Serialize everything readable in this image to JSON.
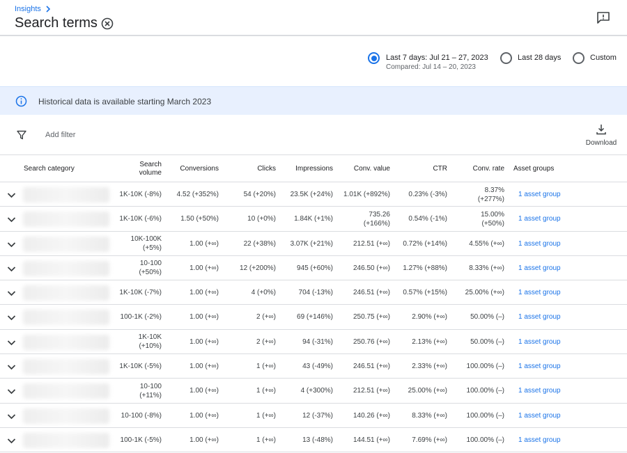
{
  "header": {
    "breadcrumb": "Insights",
    "title": "Search terms",
    "icons": {
      "chevron": "chevron-right-icon",
      "close": "close-circle-icon",
      "feedback": "feedback-icon"
    }
  },
  "date_range": {
    "options": [
      {
        "label": "Last 7 days: Jul 21 – 27, 2023",
        "sub": "Compared: Jul 14 – 20, 2023",
        "selected": true
      },
      {
        "label": "Last 28 days",
        "selected": false
      },
      {
        "label": "Custom",
        "selected": false
      }
    ]
  },
  "banner": {
    "text": "Historical data is available starting March 2023",
    "icon": "info-icon"
  },
  "filter": {
    "placeholder": "Add filter",
    "icon": "filter-icon"
  },
  "download": {
    "label": "Download",
    "icon": "download-icon"
  },
  "table": {
    "columns": {
      "category": "Search category",
      "volume_1": "Search",
      "volume_2": "volume",
      "conversions": "Conversions",
      "clicks": "Clicks",
      "impressions": "Impressions",
      "conv_value": "Conv. value",
      "ctr": "CTR",
      "conv_rate": "Conv. rate",
      "asset_groups": "Asset groups"
    },
    "rows": [
      {
        "volume": [
          "1K-10K (-8%)"
        ],
        "conversions": "4.52 (+352%)",
        "clicks": "54 (+20%)",
        "impressions": "23.5K (+24%)",
        "conv_value": [
          "1.01K (+892%)"
        ],
        "ctr": "0.23% (-3%)",
        "conv_rate": [
          "8.37%",
          "(+277%)"
        ],
        "asset": "1 asset group"
      },
      {
        "volume": [
          "1K-10K (-6%)"
        ],
        "conversions": "1.50 (+50%)",
        "clicks": "10 (+0%)",
        "impressions": "1.84K (+1%)",
        "conv_value": [
          "735.26",
          "(+166%)"
        ],
        "ctr": "0.54% (-1%)",
        "conv_rate": [
          "15.00%",
          "(+50%)"
        ],
        "asset": "1 asset group"
      },
      {
        "volume": [
          "10K-100K",
          "(+5%)"
        ],
        "conversions": "1.00 (+∞)",
        "clicks": "22 (+38%)",
        "impressions": "3.07K (+21%)",
        "conv_value": [
          "212.51 (+∞)"
        ],
        "ctr": "0.72% (+14%)",
        "conv_rate": [
          "4.55% (+∞)"
        ],
        "asset": "1 asset group"
      },
      {
        "volume": [
          "10-100",
          "(+50%)"
        ],
        "conversions": "1.00 (+∞)",
        "clicks": "12 (+200%)",
        "impressions": "945 (+60%)",
        "conv_value": [
          "246.50 (+∞)"
        ],
        "ctr": "1.27% (+88%)",
        "conv_rate": [
          "8.33% (+∞)"
        ],
        "asset": "1 asset group"
      },
      {
        "volume": [
          "1K-10K (-7%)"
        ],
        "conversions": "1.00 (+∞)",
        "clicks": "4 (+0%)",
        "impressions": "704 (-13%)",
        "conv_value": [
          "246.51 (+∞)"
        ],
        "ctr": "0.57% (+15%)",
        "conv_rate": [
          "25.00% (+∞)"
        ],
        "asset": "1 asset group"
      },
      {
        "volume": [
          "100-1K (-2%)"
        ],
        "conversions": "1.00 (+∞)",
        "clicks": "2 (+∞)",
        "impressions": "69 (+146%)",
        "conv_value": [
          "250.75 (+∞)"
        ],
        "ctr": "2.90% (+∞)",
        "conv_rate": [
          "50.00% (–)"
        ],
        "asset": "1 asset group"
      },
      {
        "volume": [
          "1K-10K",
          "(+10%)"
        ],
        "conversions": "1.00 (+∞)",
        "clicks": "2 (+∞)",
        "impressions": "94 (-31%)",
        "conv_value": [
          "250.76 (+∞)"
        ],
        "ctr": "2.13% (+∞)",
        "conv_rate": [
          "50.00% (–)"
        ],
        "asset": "1 asset group"
      },
      {
        "volume": [
          "1K-10K (-5%)"
        ],
        "conversions": "1.00 (+∞)",
        "clicks": "1 (+∞)",
        "impressions": "43 (-49%)",
        "conv_value": [
          "246.51 (+∞)"
        ],
        "ctr": "2.33% (+∞)",
        "conv_rate": [
          "100.00% (–)"
        ],
        "asset": "1 asset group"
      },
      {
        "volume": [
          "10-100",
          "(+11%)"
        ],
        "conversions": "1.00 (+∞)",
        "clicks": "1 (+∞)",
        "impressions": "4 (+300%)",
        "conv_value": [
          "212.51 (+∞)"
        ],
        "ctr": "25.00% (+∞)",
        "conv_rate": [
          "100.00% (–)"
        ],
        "asset": "1 asset group"
      },
      {
        "volume": [
          "10-100 (-8%)"
        ],
        "conversions": "1.00 (+∞)",
        "clicks": "1 (+∞)",
        "impressions": "12 (-37%)",
        "conv_value": [
          "140.26 (+∞)"
        ],
        "ctr": "8.33% (+∞)",
        "conv_rate": [
          "100.00% (–)"
        ],
        "asset": "1 asset group"
      },
      {
        "volume": [
          "100-1K (-5%)"
        ],
        "conversions": "1.00 (+∞)",
        "clicks": "1 (+∞)",
        "impressions": "13 (-48%)",
        "conv_value": [
          "144.51 (+∞)"
        ],
        "ctr": "7.69% (+∞)",
        "conv_rate": [
          "100.00% (–)"
        ],
        "asset": "1 asset group"
      }
    ]
  },
  "colors": {
    "accent": "#1a73e8",
    "banner_bg": "#e8f0fe",
    "border": "#dadce0"
  }
}
